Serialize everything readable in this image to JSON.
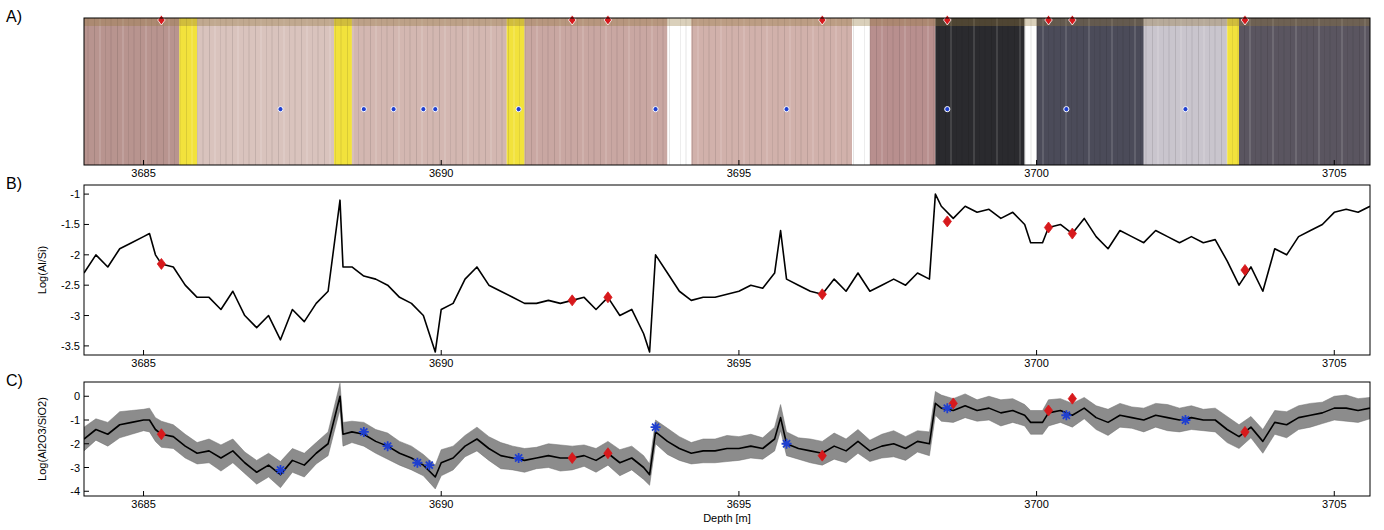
{
  "chart_data": [
    {
      "type": "core_image",
      "panel_label": "A)",
      "xlim": [
        3684.0,
        3705.6
      ],
      "xticks": [
        3685,
        3690,
        3695,
        3700,
        3705
      ],
      "sections": [
        {
          "start": 3684.0,
          "end": 3685.6,
          "color": "#b8948f"
        },
        {
          "start": 3685.6,
          "end": 3685.9,
          "color": "#f2e23c"
        },
        {
          "start": 3685.9,
          "end": 3688.2,
          "color": "#d9c3bd"
        },
        {
          "start": 3688.2,
          "end": 3688.5,
          "color": "#f2e23c"
        },
        {
          "start": 3688.5,
          "end": 3691.1,
          "color": "#d3b7b1"
        },
        {
          "start": 3691.1,
          "end": 3691.4,
          "color": "#f2e23c"
        },
        {
          "start": 3691.4,
          "end": 3693.8,
          "color": "#c9a7a2"
        },
        {
          "start": 3693.8,
          "end": 3694.2,
          "color": "#ffffff"
        },
        {
          "start": 3694.2,
          "end": 3696.9,
          "color": "#d1b1ab"
        },
        {
          "start": 3696.9,
          "end": 3697.2,
          "color": "#ffffff"
        },
        {
          "start": 3697.2,
          "end": 3698.3,
          "color": "#b88f8e"
        },
        {
          "start": 3698.3,
          "end": 3699.8,
          "color": "#2a2a2e"
        },
        {
          "start": 3699.8,
          "end": 3700.0,
          "color": "#ffffff"
        },
        {
          "start": 3700.0,
          "end": 3701.8,
          "color": "#4b4b59"
        },
        {
          "start": 3701.8,
          "end": 3703.2,
          "color": "#c9c5cd"
        },
        {
          "start": 3703.2,
          "end": 3703.4,
          "color": "#f2e23c"
        },
        {
          "start": 3703.4,
          "end": 3705.6,
          "color": "#5a5560"
        }
      ],
      "series": [
        {
          "type": "scatter",
          "marker": "diamond",
          "color": "#d7191c",
          "x": [
            3685.3,
            3692.2,
            3692.8,
            3696.4,
            3698.5,
            3700.2,
            3700.6,
            3703.5
          ]
        },
        {
          "type": "scatter",
          "marker": "circle",
          "color": "#1f3fd0",
          "x": [
            3687.3,
            3688.7,
            3689.2,
            3689.7,
            3689.9,
            3691.3,
            3693.6,
            3695.8,
            3698.5,
            3700.5,
            3702.5
          ]
        }
      ]
    },
    {
      "type": "line",
      "panel_label": "B)",
      "y_label": "Log(Al/Si)",
      "xlim": [
        3684.0,
        3705.6
      ],
      "xticks": [
        3685,
        3690,
        3695,
        3700,
        3705
      ],
      "ylim": [
        -3.65,
        -0.85
      ],
      "yticks": [
        -3.5,
        -3,
        -2.5,
        -2,
        -1.5,
        -1
      ],
      "series": [
        {
          "type": "line",
          "color": "#000000",
          "x": [
            3684.0,
            3684.2,
            3684.4,
            3684.6,
            3684.8,
            3685.0,
            3685.1,
            3685.2,
            3685.3,
            3685.5,
            3685.7,
            3685.9,
            3686.1,
            3686.3,
            3686.5,
            3686.7,
            3686.9,
            3687.1,
            3687.3,
            3687.5,
            3687.7,
            3687.9,
            3688.1,
            3688.3,
            3688.35,
            3688.5,
            3688.7,
            3688.9,
            3689.1,
            3689.3,
            3689.5,
            3689.7,
            3689.9,
            3690.0,
            3690.2,
            3690.4,
            3690.6,
            3690.8,
            3691.0,
            3691.2,
            3691.4,
            3691.6,
            3691.8,
            3692.0,
            3692.2,
            3692.4,
            3692.6,
            3692.8,
            3693.0,
            3693.2,
            3693.4,
            3693.5,
            3693.6,
            3693.8,
            3694.0,
            3694.2,
            3694.4,
            3694.6,
            3694.8,
            3695.0,
            3695.2,
            3695.4,
            3695.6,
            3695.7,
            3695.8,
            3696.0,
            3696.2,
            3696.4,
            3696.6,
            3696.8,
            3697.0,
            3697.2,
            3697.4,
            3697.6,
            3697.8,
            3698.0,
            3698.2,
            3698.3,
            3698.4,
            3698.6,
            3698.8,
            3699.0,
            3699.2,
            3699.4,
            3699.6,
            3699.8,
            3699.9,
            3700.1,
            3700.2,
            3700.4,
            3700.6,
            3700.8,
            3701.0,
            3701.2,
            3701.4,
            3701.6,
            3701.8,
            3702.0,
            3702.2,
            3702.4,
            3702.6,
            3702.8,
            3703.0,
            3703.2,
            3703.4,
            3703.6,
            3703.8,
            3704.0,
            3704.2,
            3704.4,
            3704.6,
            3704.8,
            3705.0,
            3705.2,
            3705.4,
            3705.6
          ],
          "values": [
            -2.3,
            -2.0,
            -2.2,
            -1.9,
            -1.8,
            -1.7,
            -1.65,
            -2.0,
            -2.15,
            -2.2,
            -2.5,
            -2.7,
            -2.7,
            -2.9,
            -2.6,
            -3.0,
            -3.2,
            -3.0,
            -3.4,
            -2.9,
            -3.1,
            -2.8,
            -2.6,
            -1.1,
            -2.2,
            -2.2,
            -2.35,
            -2.4,
            -2.5,
            -2.7,
            -2.8,
            -3.0,
            -3.6,
            -2.9,
            -2.8,
            -2.4,
            -2.2,
            -2.5,
            -2.6,
            -2.7,
            -2.8,
            -2.8,
            -2.75,
            -2.8,
            -2.75,
            -2.7,
            -2.9,
            -2.7,
            -3.0,
            -2.9,
            -3.3,
            -3.6,
            -2.0,
            -2.3,
            -2.6,
            -2.75,
            -2.7,
            -2.7,
            -2.65,
            -2.6,
            -2.5,
            -2.55,
            -2.3,
            -1.6,
            -2.4,
            -2.5,
            -2.6,
            -2.65,
            -2.4,
            -2.6,
            -2.3,
            -2.6,
            -2.5,
            -2.4,
            -2.5,
            -2.3,
            -2.4,
            -1.0,
            -1.2,
            -1.4,
            -1.2,
            -1.3,
            -1.25,
            -1.4,
            -1.3,
            -1.5,
            -1.8,
            -1.8,
            -1.55,
            -1.5,
            -1.65,
            -1.4,
            -1.7,
            -1.9,
            -1.6,
            -1.7,
            -1.8,
            -1.6,
            -1.7,
            -1.8,
            -1.7,
            -1.8,
            -1.75,
            -2.1,
            -2.5,
            -2.2,
            -2.6,
            -1.9,
            -2.0,
            -1.7,
            -1.6,
            -1.5,
            -1.3,
            -1.25,
            -1.3,
            -1.2
          ]
        },
        {
          "type": "scatter",
          "marker": "diamond",
          "color": "#d7191c",
          "x": [
            3685.3,
            3692.2,
            3692.8,
            3696.4,
            3698.5,
            3700.2,
            3700.6,
            3703.5
          ],
          "values": [
            -2.15,
            -2.75,
            -2.7,
            -2.65,
            -1.45,
            -1.55,
            -1.65,
            -2.25
          ]
        }
      ]
    },
    {
      "type": "line",
      "panel_label": "C)",
      "y_label": "Log(Al2O3/SiO2)",
      "x_label": "Depth [m]",
      "xlim": [
        3684.0,
        3705.6
      ],
      "xticks": [
        3685,
        3690,
        3695,
        3700,
        3705
      ],
      "ylim": [
        -4.2,
        0.6
      ],
      "yticks": [
        -4,
        -3,
        -2,
        -1,
        0
      ],
      "series": [
        {
          "type": "line",
          "color": "#000000",
          "x": [
            3684.0,
            3684.2,
            3684.4,
            3684.6,
            3684.8,
            3685.0,
            3685.1,
            3685.2,
            3685.3,
            3685.5,
            3685.7,
            3685.9,
            3686.1,
            3686.3,
            3686.5,
            3686.7,
            3686.9,
            3687.1,
            3687.3,
            3687.5,
            3687.7,
            3687.9,
            3688.1,
            3688.3,
            3688.35,
            3688.5,
            3688.7,
            3688.9,
            3689.1,
            3689.3,
            3689.5,
            3689.7,
            3689.9,
            3690.0,
            3690.2,
            3690.4,
            3690.6,
            3690.8,
            3691.0,
            3691.2,
            3691.4,
            3691.6,
            3691.8,
            3692.0,
            3692.2,
            3692.4,
            3692.6,
            3692.8,
            3693.0,
            3693.2,
            3693.4,
            3693.5,
            3693.6,
            3693.8,
            3694.0,
            3694.2,
            3694.4,
            3694.6,
            3694.8,
            3695.0,
            3695.2,
            3695.4,
            3695.6,
            3695.7,
            3695.8,
            3696.0,
            3696.2,
            3696.4,
            3696.6,
            3696.8,
            3697.0,
            3697.2,
            3697.4,
            3697.6,
            3697.8,
            3698.0,
            3698.2,
            3698.3,
            3698.4,
            3698.6,
            3698.8,
            3699.0,
            3699.2,
            3699.4,
            3699.6,
            3699.8,
            3699.9,
            3700.1,
            3700.2,
            3700.4,
            3700.6,
            3700.8,
            3701.0,
            3701.2,
            3701.4,
            3701.6,
            3701.8,
            3702.0,
            3702.2,
            3702.4,
            3702.6,
            3702.8,
            3703.0,
            3703.2,
            3703.4,
            3703.6,
            3703.8,
            3704.0,
            3704.2,
            3704.4,
            3704.6,
            3704.8,
            3705.0,
            3705.2,
            3705.4,
            3705.6
          ],
          "values": [
            -1.8,
            -1.4,
            -1.6,
            -1.2,
            -1.1,
            -1.0,
            -1.0,
            -1.4,
            -1.6,
            -1.7,
            -2.1,
            -2.4,
            -2.3,
            -2.6,
            -2.3,
            -2.8,
            -3.2,
            -2.9,
            -3.3,
            -2.7,
            -2.9,
            -2.4,
            -2.0,
            0.0,
            -1.6,
            -1.5,
            -1.6,
            -1.9,
            -2.1,
            -2.4,
            -2.6,
            -2.9,
            -3.4,
            -2.8,
            -2.6,
            -2.1,
            -1.8,
            -2.2,
            -2.5,
            -2.6,
            -2.7,
            -2.6,
            -2.5,
            -2.6,
            -2.6,
            -2.5,
            -2.7,
            -2.4,
            -2.8,
            -2.6,
            -3.0,
            -3.3,
            -1.5,
            -1.9,
            -2.2,
            -2.4,
            -2.3,
            -2.3,
            -2.2,
            -2.2,
            -2.1,
            -2.2,
            -1.8,
            -0.9,
            -2.0,
            -2.2,
            -2.3,
            -2.4,
            -2.1,
            -2.3,
            -1.9,
            -2.3,
            -2.1,
            -2.0,
            -2.2,
            -1.9,
            -2.0,
            -0.3,
            -0.5,
            -0.6,
            -0.4,
            -0.6,
            -0.5,
            -0.7,
            -0.6,
            -0.8,
            -1.1,
            -1.1,
            -0.7,
            -0.6,
            -0.8,
            -0.5,
            -0.9,
            -1.1,
            -0.8,
            -0.9,
            -1.0,
            -0.8,
            -0.9,
            -1.0,
            -0.9,
            -1.0,
            -1.0,
            -1.4,
            -1.7,
            -1.3,
            -1.9,
            -1.1,
            -1.2,
            -0.9,
            -0.8,
            -0.7,
            -0.5,
            -0.5,
            -0.6,
            -0.5
          ],
          "errors": [
            0.5,
            0.45,
            0.5,
            0.55,
            0.5,
            0.45,
            0.5,
            0.5,
            0.55,
            0.5,
            0.5,
            0.45,
            0.5,
            0.55,
            0.5,
            0.45,
            0.5,
            0.5,
            0.55,
            0.5,
            0.5,
            0.45,
            0.5,
            0.55,
            0.5,
            0.45,
            0.5,
            0.5,
            0.55,
            0.5,
            0.5,
            0.45,
            0.5,
            0.55,
            0.5,
            0.45,
            0.5,
            0.5,
            0.55,
            0.5,
            0.5,
            0.45,
            0.5,
            0.55,
            0.5,
            0.45,
            0.5,
            0.5,
            0.55,
            0.5,
            0.5,
            0.45,
            0.5,
            0.55,
            0.5,
            0.45,
            0.5,
            0.5,
            0.55,
            0.5,
            0.5,
            0.45,
            0.5,
            0.55,
            0.5,
            0.45,
            0.5,
            0.5,
            0.55,
            0.5,
            0.5,
            0.45,
            0.5,
            0.55,
            0.5,
            0.45,
            0.5,
            0.5,
            0.55,
            0.5,
            0.5,
            0.45,
            0.5,
            0.55,
            0.5,
            0.45,
            0.5,
            0.5,
            0.55,
            0.5,
            0.5,
            0.45,
            0.5,
            0.55,
            0.5,
            0.45,
            0.5,
            0.5,
            0.55,
            0.5,
            0.5,
            0.45,
            0.5,
            0.55,
            0.5,
            0.45,
            0.5,
            0.5,
            0.55,
            0.5,
            0.5,
            0.45,
            0.5,
            0.55,
            0.5,
            0.45
          ]
        },
        {
          "type": "scatter",
          "marker": "diamond",
          "color": "#d7191c",
          "x": [
            3685.3,
            3692.2,
            3692.8,
            3696.4,
            3698.6,
            3700.2,
            3700.6,
            3703.5
          ],
          "values": [
            -1.6,
            -2.6,
            -2.4,
            -2.5,
            -0.3,
            -0.6,
            -0.1,
            -1.5
          ]
        },
        {
          "type": "scatter",
          "marker": "star",
          "color": "#1f3fd0",
          "x": [
            3687.3,
            3688.7,
            3689.1,
            3689.6,
            3689.8,
            3691.3,
            3693.6,
            3695.8,
            3698.5,
            3700.5,
            3702.5
          ],
          "values": [
            -3.1,
            -1.5,
            -2.1,
            -2.8,
            -2.9,
            -2.6,
            -1.3,
            -2.0,
            -0.5,
            -0.8,
            -1.0
          ]
        }
      ]
    }
  ]
}
